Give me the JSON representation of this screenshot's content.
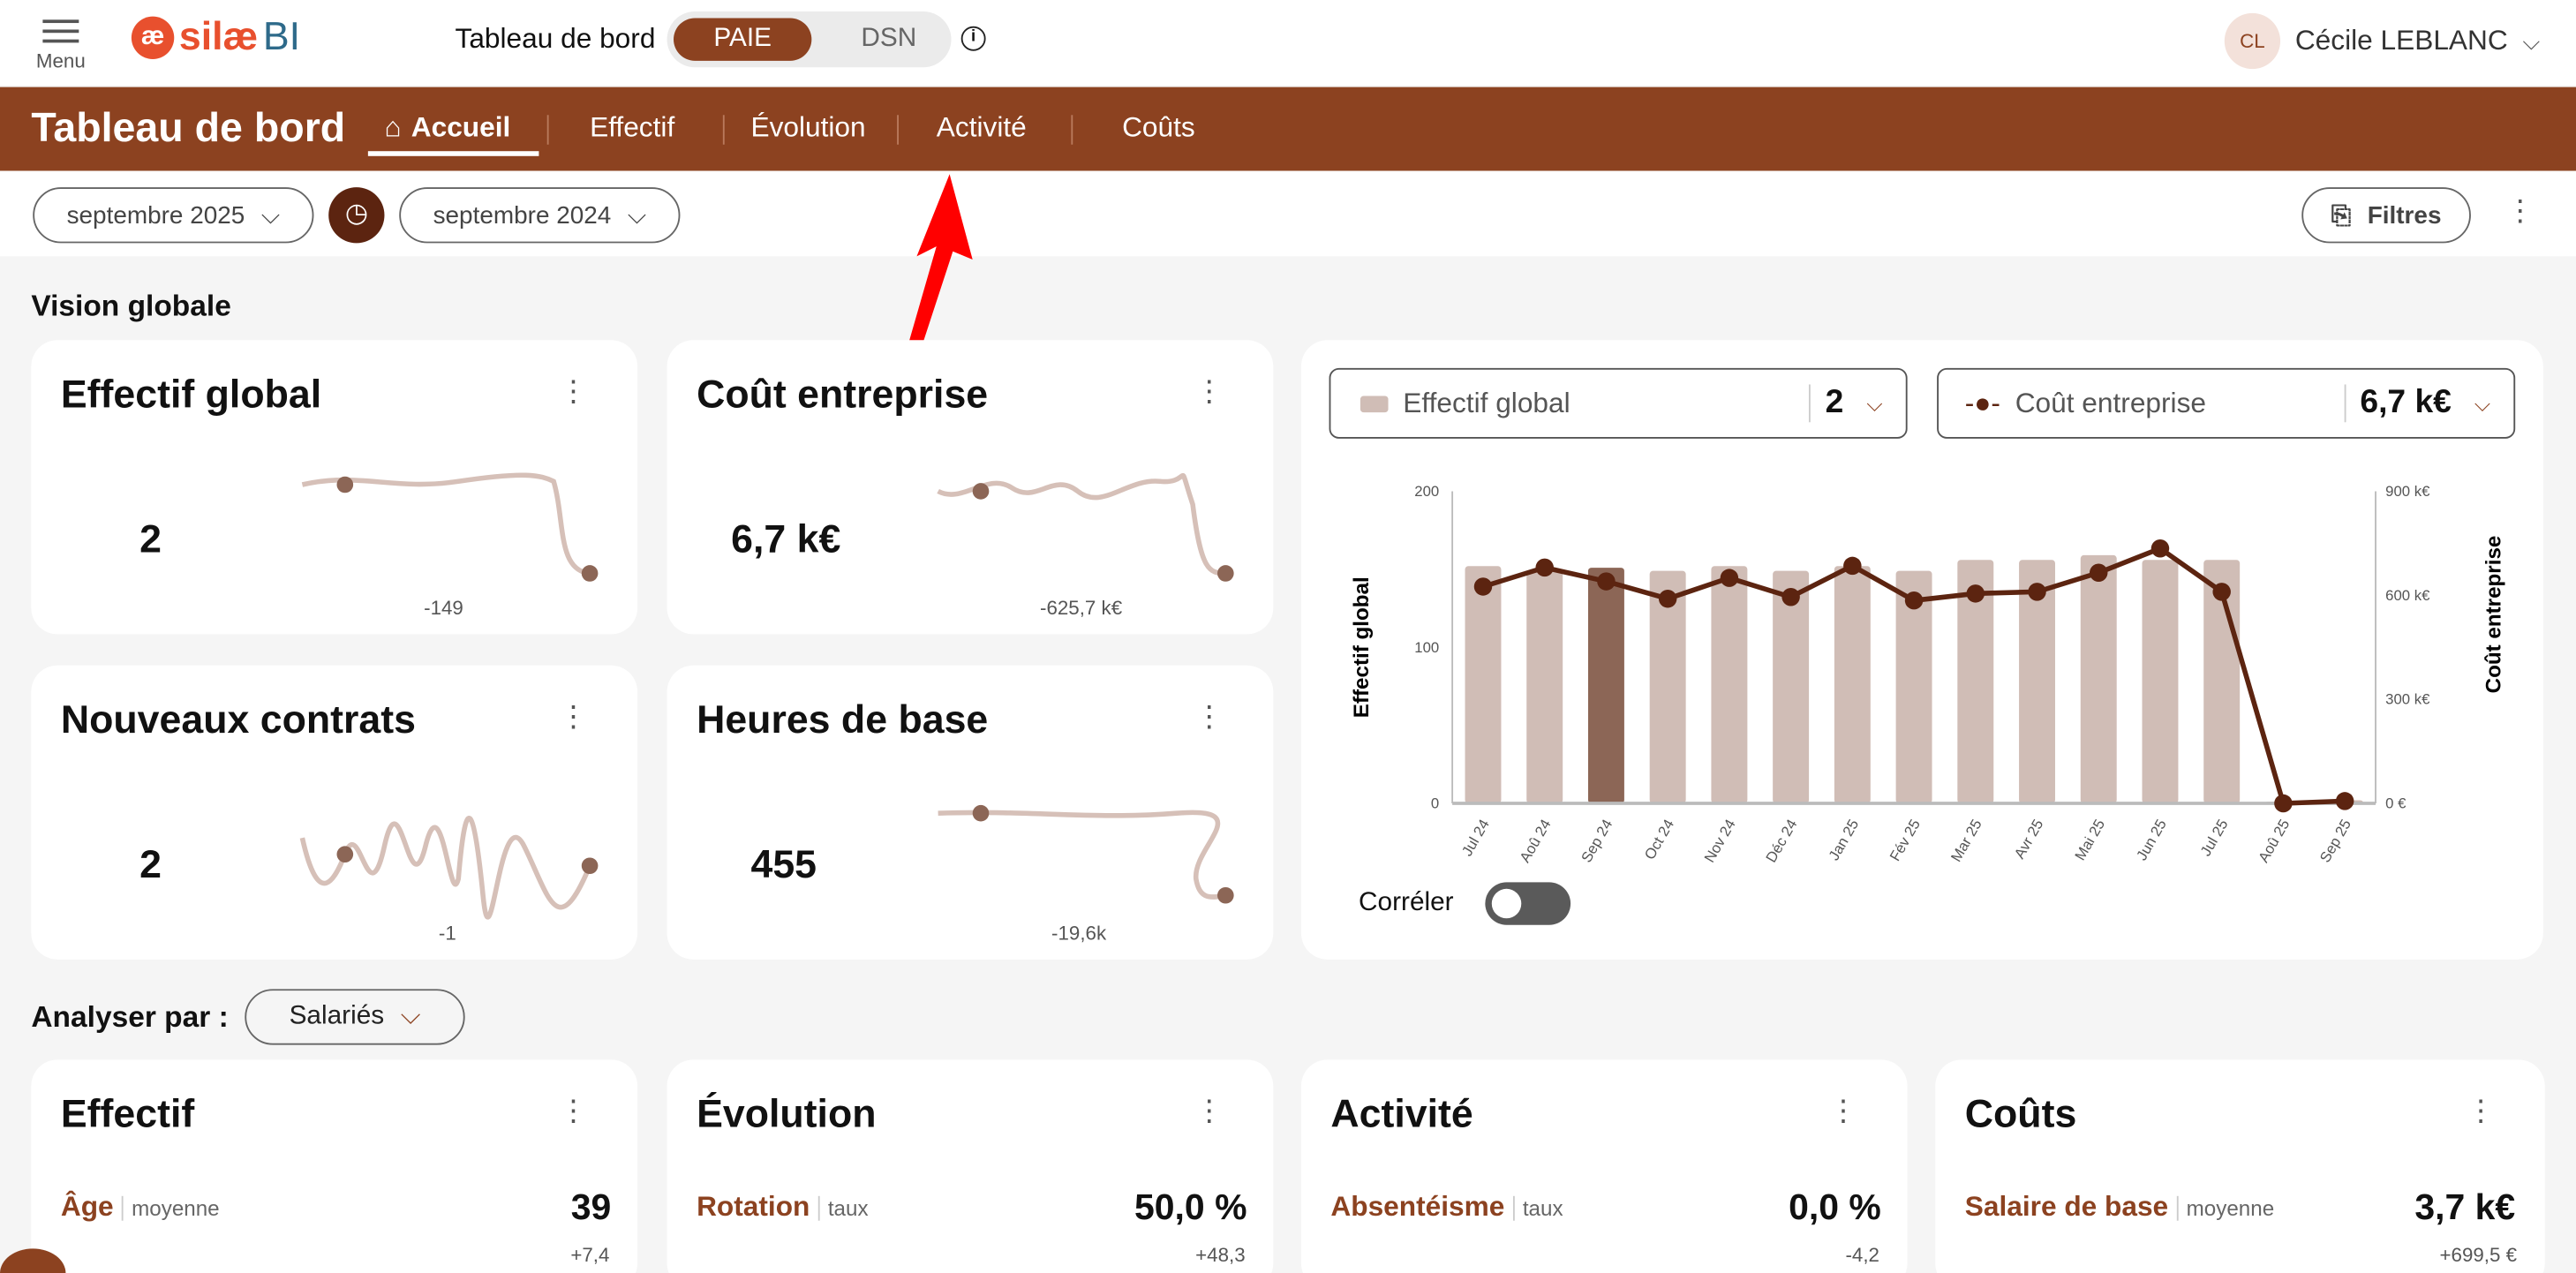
{
  "header": {
    "menu_label": "Menu",
    "logo_text": "silæ",
    "logo_bi": "BI",
    "section": "Tableau de bord",
    "toggle": [
      "PAIE",
      "DSN"
    ],
    "active_toggle": "PAIE",
    "user_initials": "CL",
    "user_name": "Cécile LEBLANC"
  },
  "nav": {
    "title": "Tableau de bord",
    "items": [
      "Accueil",
      "Effectif",
      "Évolution",
      "Activité",
      "Coûts"
    ],
    "active": "Accueil"
  },
  "filters": {
    "period": "septembre 2025",
    "compare_period": "septembre 2024",
    "filters_label": "Filtres"
  },
  "vision": {
    "title": "Vision globale",
    "cards": [
      {
        "title": "Effectif global",
        "value": "2",
        "delta": "-149"
      },
      {
        "title": "Coût entreprise",
        "value": "6,7 k€",
        "delta": "-625,7 k€"
      },
      {
        "title": "Nouveaux contrats",
        "value": "2",
        "delta": "-1"
      },
      {
        "title": "Heures de base",
        "value": "455",
        "delta": "-19,6k"
      }
    ]
  },
  "chart_panel": {
    "bar_selector": {
      "label": "Effectif global",
      "value": "2"
    },
    "line_selector": {
      "label": "Coût entreprise",
      "value": "6,7 k€"
    },
    "correlate_label": "Corréler",
    "correlate_on": false
  },
  "chart_data": {
    "type": "bar",
    "categories": [
      "Jul 24",
      "Aoû 24",
      "Sep 24",
      "Oct 24",
      "Nov 24",
      "Déc 24",
      "Jan 25",
      "Fév 25",
      "Mar 25",
      "Avr 25",
      "Mai 25",
      "Jun 25",
      "Jul 25",
      "Aoû 25",
      "Sep 25"
    ],
    "highlighted": "Sep 24",
    "series": [
      {
        "name": "Effectif global",
        "type": "bar",
        "axis": "left",
        "values": [
          152,
          149,
          151,
          149,
          152,
          149,
          152,
          149,
          156,
          156,
          159,
          156,
          156,
          1,
          2
        ]
      },
      {
        "name": "Coût entreprise",
        "type": "line",
        "axis": "right",
        "values": [
          625,
          680,
          640,
          590,
          650,
          595,
          685,
          585,
          605,
          610,
          665,
          735,
          610,
          0,
          6.7
        ]
      }
    ],
    "ylabel": "Effectif global",
    "y2label": "Coût entreprise",
    "ylim": [
      0,
      200
    ],
    "yticks": [
      "0",
      "100",
      "200"
    ],
    "y2lim": [
      0,
      900
    ],
    "y2ticks": [
      "0 €",
      "300 k€",
      "600 k€",
      "900 k€"
    ],
    "colors": {
      "bar": "#d0bdb6",
      "bar_highlight": "#8c6656",
      "line": "#5c2410"
    }
  },
  "analyse": {
    "label": "Analyser par :",
    "value": "Salariés",
    "cards": [
      {
        "title": "Effectif",
        "metric": "Âge",
        "unit": "moyenne",
        "value": "39",
        "delta": "+7,4"
      },
      {
        "title": "Évolution",
        "metric": "Rotation",
        "unit": "taux",
        "value": "50,0 %",
        "delta": "+48,3"
      },
      {
        "title": "Activité",
        "metric": "Absentéisme",
        "unit": "taux",
        "value": "0,0 %",
        "delta": "-4,2"
      },
      {
        "title": "Coûts",
        "metric": "Salaire de base",
        "unit": "moyenne",
        "value": "3,7 k€",
        "delta": "+699,5 €"
      }
    ]
  }
}
